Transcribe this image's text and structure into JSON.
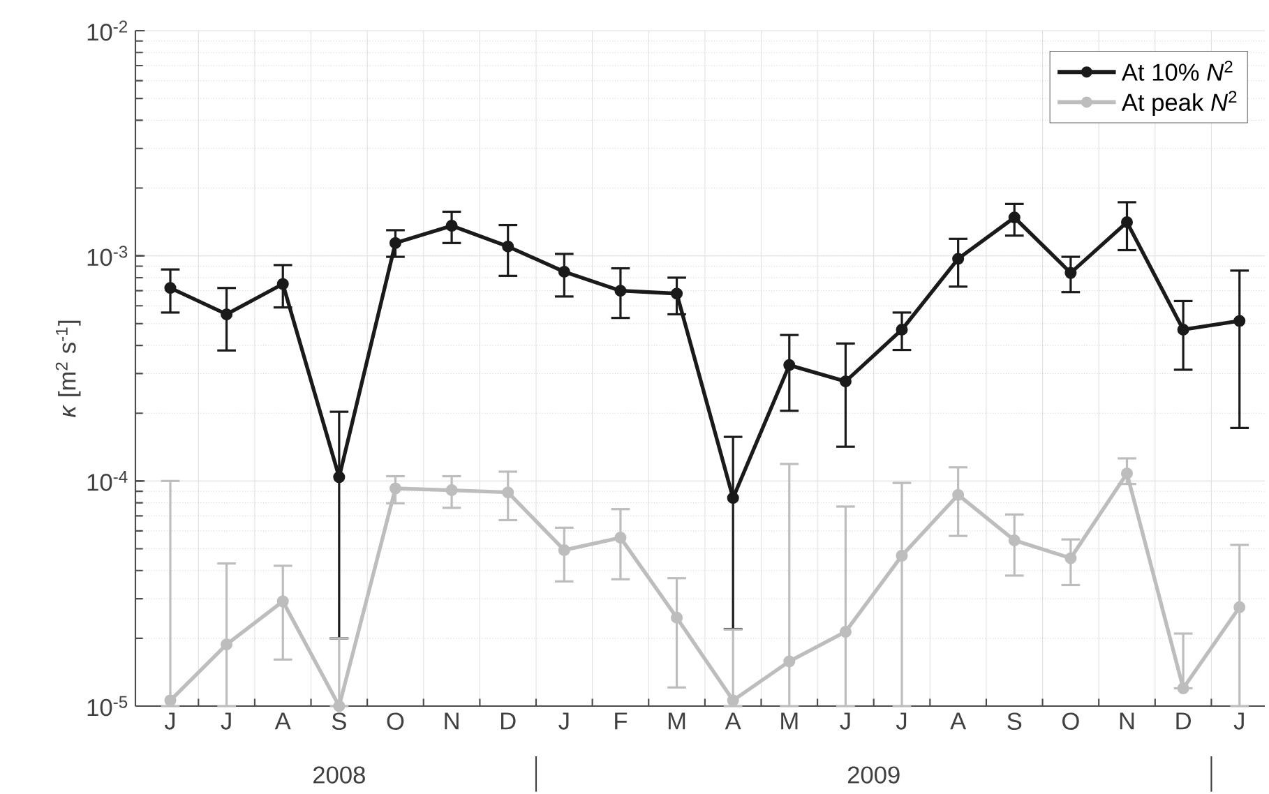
{
  "chart_data": {
    "type": "line",
    "ylabel": "*κ* [m$^{2}$ s$^{-1}$]",
    "categories": [
      "J",
      "J",
      "A",
      "S",
      "O",
      "N",
      "D",
      "J",
      "F",
      "M",
      "A",
      "M",
      "J",
      "J",
      "A",
      "S",
      "O",
      "N",
      "D",
      "J"
    ],
    "series": [
      {
        "name": "At 10% *N*$^{2}$",
        "color": "#1a1a1a",
        "values": [
          0.00072,
          0.00055,
          0.00075,
          0.000104,
          0.00114,
          0.00136,
          0.0011,
          0.00085,
          0.0007,
          0.00068,
          8.4e-05,
          0.000327,
          0.000277,
          0.00047,
          0.00097,
          0.00148,
          0.00084,
          0.00141,
          0.00047,
          0.000514
        ],
        "errors": [
          [
            0.00056,
            0.00087
          ],
          [
            0.00038,
            0.00072
          ],
          [
            0.00059,
            0.00091
          ],
          [
            2e-05,
            0.000203
          ],
          [
            0.00099,
            0.0013
          ],
          [
            0.00114,
            0.00157
          ],
          [
            0.000815,
            0.00137
          ],
          [
            0.00066,
            0.00102
          ],
          [
            0.00053,
            0.00088
          ],
          [
            0.00055,
            0.0008
          ],
          [
            2.2e-05,
            0.000157
          ],
          [
            0.000205,
            0.000445
          ],
          [
            0.000142,
            0.000408
          ],
          [
            0.000382,
            0.00056
          ],
          [
            0.00073,
            0.00119
          ],
          [
            0.00123,
            0.0017
          ],
          [
            0.00069,
            0.00099
          ],
          [
            0.00106,
            0.00173
          ],
          [
            0.000312,
            0.00063
          ],
          [
            0.000172,
            0.00086
          ]
        ]
      },
      {
        "name": "At peak *N*$^{2}$",
        "color": "#bdbdbd",
        "values": [
          1.06e-05,
          1.88e-05,
          2.92e-05,
          1e-05,
          9.27e-05,
          9.1e-05,
          8.9e-05,
          4.93e-05,
          5.6e-05,
          2.47e-05,
          1.06e-05,
          1.58e-05,
          2.14e-05,
          4.66e-05,
          8.68e-05,
          5.45e-05,
          4.54e-05,
          0.000108,
          1.2e-05,
          2.75e-05
        ],
        "errors": [
          [
            1e-05,
            0.0001
          ],
          [
            1e-05,
            4.3e-05
          ],
          [
            1.61e-05,
            4.2e-05
          ],
          [
            1e-05,
            2e-05
          ],
          [
            7.96e-05,
            0.000105
          ],
          [
            7.6e-05,
            0.000105
          ],
          [
            6.7e-05,
            0.00011
          ],
          [
            3.58e-05,
            6.2e-05
          ],
          [
            3.66e-05,
            7.5e-05
          ],
          [
            1.21e-05,
            3.7e-05
          ],
          [
            1e-05,
            2.19e-05
          ],
          [
            1e-05,
            0.000119
          ],
          [
            1e-05,
            7.7e-05
          ],
          [
            1e-05,
            9.8e-05
          ],
          [
            5.7e-05,
            0.000115
          ],
          [
            3.8e-05,
            7.1e-05
          ],
          [
            3.45e-05,
            5.5e-05
          ],
          [
            9.7e-05,
            0.000126
          ],
          [
            1.2e-05,
            2.1e-05
          ],
          [
            1e-05,
            5.2e-05
          ]
        ]
      }
    ],
    "log": "y",
    "ylim": [
      1e-05,
      0.01
    ],
    "yticks": [
      {
        "value": 1e-05,
        "label": "10$^{-5}$"
      },
      {
        "value": 0.0001,
        "label": "10$^{-4}$"
      },
      {
        "value": 0.001,
        "label": "10$^{-3}$"
      },
      {
        "value": 0.01,
        "label": "10$^{-2}$"
      }
    ],
    "grid": true,
    "legend": "top right",
    "marker": "circle",
    "annotations": [
      "2008",
      "2009"
    ]
  }
}
